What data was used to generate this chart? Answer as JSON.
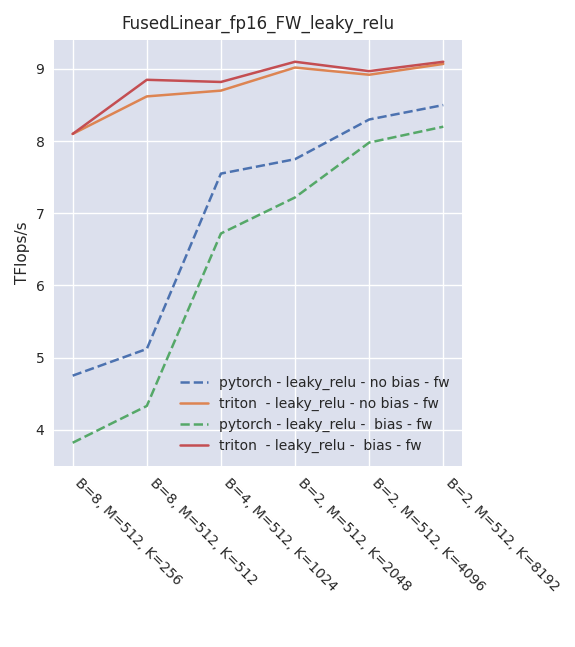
{
  "title": "FusedLinear_fp16_FW_leaky_relu",
  "ylabel": "TFlops/s",
  "x_labels": [
    "B=8, M=512, K=256",
    "B=8, M=512, K=512",
    "B=4, M=512, K=1024",
    "B=2, M=512, K=2048",
    "B=2, M=512, K=4096",
    "B=2, M=512, K=8192"
  ],
  "series": [
    {
      "label": "pytorch - leaky_relu - no bias - fw",
      "color": "#4c72b0",
      "linestyle": "--",
      "values": [
        4.75,
        5.12,
        7.55,
        7.75,
        8.3,
        8.5
      ]
    },
    {
      "label": "triton  - leaky_relu - no bias - fw",
      "color": "#dd8452",
      "linestyle": "-",
      "values": [
        8.1,
        8.62,
        8.7,
        9.02,
        8.92,
        9.07
      ]
    },
    {
      "label": "pytorch - leaky_relu -  bias - fw",
      "color": "#55a868",
      "linestyle": "--",
      "values": [
        3.82,
        4.33,
        6.72,
        7.22,
        7.98,
        8.2
      ]
    },
    {
      "label": "triton  - leaky_relu -  bias - fw",
      "color": "#c44e52",
      "linestyle": "-",
      "values": [
        8.1,
        8.85,
        8.82,
        9.1,
        8.97,
        9.1
      ]
    }
  ],
  "ylim": [
    3.5,
    9.4
  ],
  "yticks": [
    4,
    5,
    6,
    7,
    8,
    9
  ],
  "plot_bgcolor": "#dce0ed",
  "fig_bgcolor": "#ffffff",
  "title_fontsize": 12,
  "label_fontsize": 11,
  "tick_fontsize": 10,
  "legend_fontsize": 10,
  "linewidth": 1.8
}
